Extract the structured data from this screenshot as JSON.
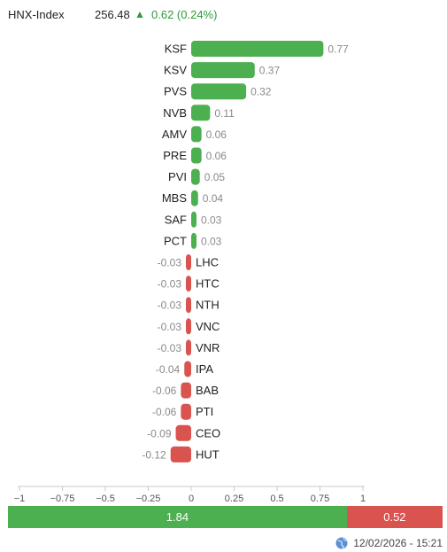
{
  "header": {
    "index_name": "HNX-Index",
    "index_value": "256.48",
    "change_text": "0.62 (0.24%)",
    "direction": "up",
    "up_color": "#2e9a3a"
  },
  "chart_data": {
    "type": "bar",
    "orientation": "horizontal",
    "categories": [
      "KSF",
      "KSV",
      "PVS",
      "NVB",
      "AMV",
      "PRE",
      "PVI",
      "MBS",
      "SAF",
      "PCT",
      "LHC",
      "HTC",
      "NTH",
      "VNC",
      "VNR",
      "IPA",
      "BAB",
      "PTI",
      "CEO",
      "HUT"
    ],
    "values": [
      0.77,
      0.37,
      0.32,
      0.11,
      0.06,
      0.06,
      0.05,
      0.04,
      0.03,
      0.03,
      -0.03,
      -0.03,
      -0.03,
      -0.03,
      -0.03,
      -0.04,
      -0.06,
      -0.06,
      -0.09,
      -0.12
    ],
    "value_labels": [
      "0.77",
      "0.37",
      "0.32",
      "0.11",
      "0.06",
      "0.06",
      "0.05",
      "0.04",
      "0.03",
      "0.03",
      "-0.03",
      "-0.03",
      "-0.03",
      "-0.03",
      "-0.03",
      "-0.04",
      "-0.06",
      "-0.06",
      "-0.09",
      "-0.12"
    ],
    "xlim": [
      -1,
      1
    ],
    "xticks": [
      -1,
      -0.75,
      -0.5,
      -0.25,
      0,
      0.25,
      0.5,
      0.75,
      1
    ],
    "xtick_labels": [
      "−1",
      "−0.75",
      "−0.5",
      "−0.25",
      "0",
      "0.25",
      "0.5",
      "0.75",
      "1"
    ],
    "positive_color": "#4caf50",
    "negative_color": "#d9534f",
    "grid": false,
    "legend": "none"
  },
  "summary": {
    "positive_value": 1.84,
    "negative_value": 0.52,
    "positive_label": "1.84",
    "negative_label": "0.52",
    "positive_color": "#4caf50",
    "negative_color": "#d9534f"
  },
  "footer": {
    "timestamp": "12/02/2026 - 15:21",
    "icon": "globe-icon"
  }
}
